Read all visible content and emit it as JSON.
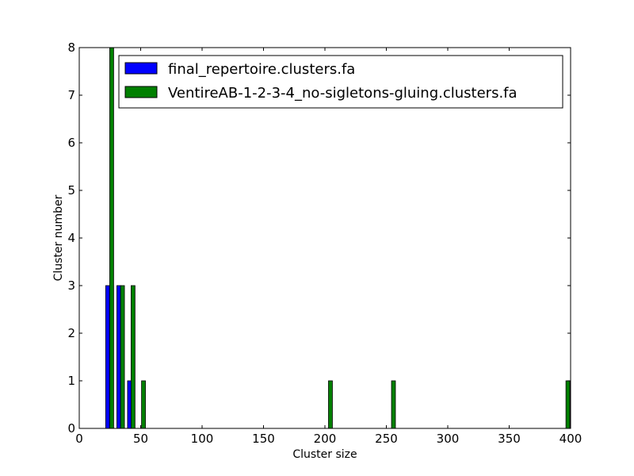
{
  "chart_data": {
    "type": "bar",
    "xlabel": "Cluster size",
    "ylabel": "Cluster number",
    "xlim": [
      0,
      400
    ],
    "ylim": [
      0,
      8
    ],
    "xticks": [
      "0",
      "50",
      "100",
      "150",
      "200",
      "250",
      "300",
      "350",
      "400"
    ],
    "yticks": [
      "0",
      "1",
      "2",
      "3",
      "4",
      "5",
      "6",
      "7",
      "8"
    ],
    "grid": false,
    "legend_position": "top-right",
    "bar_width": 3.2,
    "series": [
      {
        "name": "final_repertoire.clusters.fa",
        "color": "#0000ff",
        "x": [
          23.1,
          32.2,
          40.9
        ],
        "values": [
          3,
          3,
          1
        ]
      },
      {
        "name": "VentireAB-1-2-3-4_no-sigletons-gluing.clusters.fa",
        "color": "#008000",
        "x": [
          26.4,
          35.2,
          43.8,
          52.3,
          204.5,
          255.8,
          397.8
        ],
        "values": [
          8,
          3,
          3,
          1,
          1,
          1,
          1
        ]
      }
    ]
  }
}
